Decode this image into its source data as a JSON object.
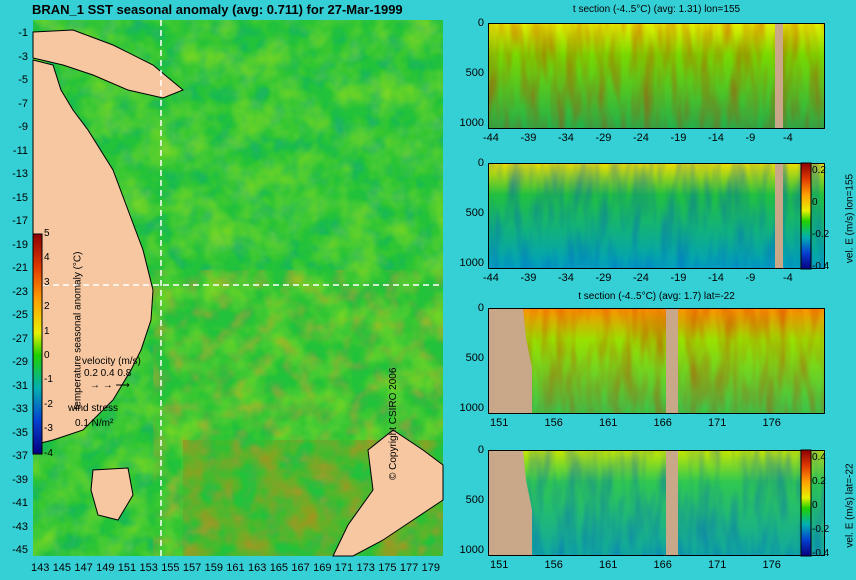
{
  "map": {
    "title": "BRAN_1 SST seasonal anomaly (avg: 0.711) for 27-Mar-1999",
    "y_ticks": [
      "-1",
      "-3",
      "-5",
      "-7",
      "-9",
      "-11",
      "-13",
      "-15",
      "-17",
      "-19",
      "-21",
      "-23",
      "-25",
      "-27",
      "-29",
      "-31",
      "-33",
      "-35",
      "-37",
      "-39",
      "-41",
      "-43",
      "-45"
    ],
    "x_ticks": [
      "143",
      "145",
      "147",
      "149",
      "151",
      "153",
      "155",
      "157",
      "159",
      "161",
      "163",
      "165",
      "167",
      "169",
      "171",
      "173",
      "175",
      "177",
      "179"
    ],
    "colorbar": {
      "label": "temperature seasonal anomaly (°C)",
      "ticks": [
        "5",
        "4",
        "3",
        "2",
        "1",
        "0",
        "-1",
        "-2",
        "-3",
        "-4"
      ]
    },
    "velocity_legend": {
      "title": "velocity (m/s)",
      "values": "0.2 0.4 0.8"
    },
    "wind_legend": {
      "title": "wind stress",
      "value": "0.1 N/m²"
    },
    "copyright": "© Copyright CSIRO 2006"
  },
  "panels": [
    {
      "id": "t-lon",
      "title": "t section (-4..5°C) (avg: 1.31) lon=155",
      "y_ticks": [
        "0",
        "500",
        "1000"
      ],
      "x_ticks": [
        "-44",
        "-39",
        "-34",
        "-29",
        "-24",
        "-19",
        "-14",
        "-9",
        "-4"
      ]
    },
    {
      "id": "v-lon",
      "title": "",
      "y_ticks": [
        "0",
        "500",
        "1000"
      ],
      "x_ticks": [
        "-44",
        "-39",
        "-34",
        "-29",
        "-24",
        "-19",
        "-14",
        "-9",
        "-4"
      ],
      "colorbar_label": "vel. E (m/s) lon=155",
      "colorbar_ticks": [
        "0.2",
        "0",
        "-0.2",
        "-0.4"
      ]
    },
    {
      "id": "t-lat",
      "title": "t section (-4..5°C) (avg: 1.7) lat=-22",
      "y_ticks": [
        "0",
        "500",
        "1000"
      ],
      "x_ticks": [
        "151",
        "156",
        "161",
        "166",
        "171",
        "176"
      ]
    },
    {
      "id": "v-lat",
      "title": "",
      "y_ticks": [
        "0",
        "500",
        "1000"
      ],
      "x_ticks": [
        "151",
        "156",
        "161",
        "166",
        "171",
        "176"
      ],
      "colorbar_label": "vel. E (m/s) lat=-22",
      "colorbar_ticks": [
        "0.4",
        "0.2",
        "0",
        "-0.2",
        "-0.4"
      ]
    }
  ],
  "chart_data": [
    {
      "type": "heatmap",
      "title": "BRAN_1 SST seasonal anomaly (avg: 0.711) for 27-Mar-1999",
      "xlabel": "",
      "ylabel": "",
      "xlim": [
        143,
        179
      ],
      "ylim": [
        -45,
        -1
      ],
      "colorbar_range": [
        -4,
        5
      ],
      "colorbar_label": "temperature seasonal anomaly (°C)",
      "section_lines": {
        "lon": 155,
        "lat": -22
      }
    },
    {
      "type": "heatmap",
      "title": "t section (-4..5°C) (avg: 1.31) lon=155",
      "xlim": [
        -45,
        0
      ],
      "ylim": [
        1000,
        0
      ],
      "colorbar_range": [
        -4,
        5
      ]
    },
    {
      "type": "heatmap",
      "title": "",
      "xlim": [
        -45,
        0
      ],
      "ylim": [
        1000,
        0
      ],
      "colorbar_range": [
        -0.4,
        0.4
      ],
      "colorbar_label": "vel. E (m/s) lon=155"
    },
    {
      "type": "heatmap",
      "title": "t section (-4..5°C) (avg: 1.7) lat=-22",
      "xlim": [
        150,
        180
      ],
      "ylim": [
        1000,
        0
      ],
      "colorbar_range": [
        -4,
        5
      ]
    },
    {
      "type": "heatmap",
      "title": "",
      "xlim": [
        150,
        180
      ],
      "ylim": [
        1000,
        0
      ],
      "colorbar_range": [
        -0.4,
        0.4
      ],
      "colorbar_label": "vel. E (m/s) lat=-22"
    }
  ]
}
